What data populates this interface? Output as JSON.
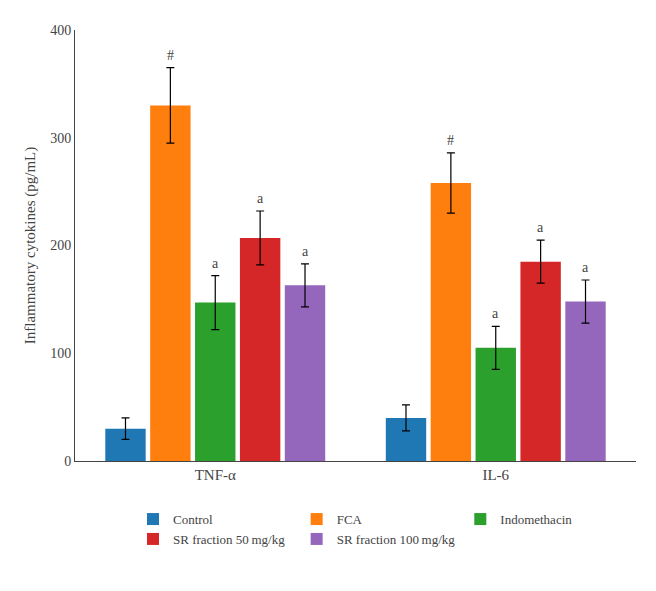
{
  "chart_data": {
    "type": "bar",
    "categories": [
      "TNF-α",
      "IL-6"
    ],
    "ylabel": "Inflammatory cytokines (pg/mL)",
    "ylim": [
      0,
      400
    ],
    "yticks": [
      0,
      100,
      200,
      300,
      400
    ],
    "grid": false,
    "legend": "bottom",
    "series": [
      {
        "name": "Control",
        "values": [
          30,
          40
        ],
        "errors": [
          10,
          12
        ]
      },
      {
        "name": "FCA",
        "values": [
          330,
          258
        ],
        "errors": [
          35,
          28
        ],
        "annotations": [
          "#",
          "#"
        ]
      },
      {
        "name": "Indomethacin",
        "values": [
          147,
          105
        ],
        "errors": [
          25,
          20
        ],
        "annotations": [
          "a",
          "a"
        ]
      },
      {
        "name": "SR fraction 50 mg/kg",
        "values": [
          207,
          185
        ],
        "errors": [
          25,
          20
        ],
        "annotations": [
          "a",
          "a"
        ]
      },
      {
        "name": "SR fraction 100 mg/kg",
        "values": [
          163,
          148
        ],
        "errors": [
          20,
          20
        ],
        "annotations": [
          "a",
          "a"
        ]
      }
    ]
  }
}
